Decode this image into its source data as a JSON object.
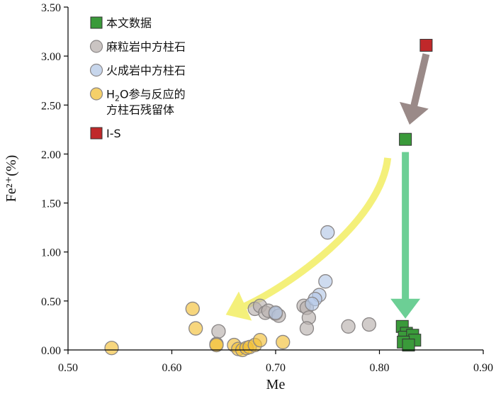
{
  "chart_data": {
    "type": "scatter",
    "xlabel": "Me",
    "ylabel": "Fe²⁺(%)",
    "xlim": [
      0.5,
      0.9
    ],
    "ylim": [
      0.0,
      3.5
    ],
    "x_ticks": [
      "0.50",
      "0.60",
      "0.70",
      "0.80",
      "0.90"
    ],
    "y_ticks": [
      "0.00",
      "0.50",
      "1.00",
      "1.50",
      "2.00",
      "2.50",
      "3.00",
      "3.50"
    ],
    "grid": false,
    "legend_position": "top-left",
    "series": [
      {
        "name": "本文数据",
        "marker": "square",
        "color": "#3a9a3a",
        "points": [
          [
            0.825,
            2.15
          ],
          [
            0.822,
            0.24
          ],
          [
            0.826,
            0.17
          ],
          [
            0.824,
            0.13
          ],
          [
            0.832,
            0.15
          ],
          [
            0.834,
            0.1
          ],
          [
            0.823,
            0.08
          ],
          [
            0.828,
            0.05
          ]
        ]
      },
      {
        "name": "麻粒岩中方柱石",
        "marker": "circle",
        "color": "#b8b0ae",
        "points": [
          [
            0.645,
            0.19
          ],
          [
            0.68,
            0.42
          ],
          [
            0.685,
            0.45
          ],
          [
            0.69,
            0.38
          ],
          [
            0.693,
            0.4
          ],
          [
            0.7,
            0.37
          ],
          [
            0.703,
            0.35
          ],
          [
            0.727,
            0.45
          ],
          [
            0.73,
            0.43
          ],
          [
            0.732,
            0.33
          ],
          [
            0.73,
            0.22
          ],
          [
            0.77,
            0.24
          ],
          [
            0.79,
            0.26
          ]
        ]
      },
      {
        "name": "火成岩中方柱石",
        "marker": "circle",
        "color": "#b4c8e6",
        "points": [
          [
            0.75,
            1.2
          ],
          [
            0.748,
            0.7
          ],
          [
            0.742,
            0.56
          ],
          [
            0.738,
            0.52
          ],
          [
            0.735,
            0.47
          ],
          [
            0.7,
            0.38
          ]
        ]
      },
      {
        "name": "H2O参与反应的方柱石残留体",
        "marker": "circle",
        "color": "#f2c037",
        "points": [
          [
            0.542,
            0.02
          ],
          [
            0.62,
            0.42
          ],
          [
            0.623,
            0.22
          ],
          [
            0.643,
            0.06
          ],
          [
            0.643,
            0.05
          ],
          [
            0.66,
            0.05
          ],
          [
            0.664,
            0.01
          ],
          [
            0.668,
            0.0
          ],
          [
            0.672,
            0.02
          ],
          [
            0.675,
            0.03
          ],
          [
            0.68,
            0.05
          ],
          [
            0.685,
            0.1
          ],
          [
            0.707,
            0.08
          ]
        ]
      },
      {
        "name": "I-S",
        "marker": "square",
        "color": "#c0282a",
        "points": [
          [
            0.845,
            3.11
          ]
        ]
      }
    ],
    "legend": {
      "items": [
        {
          "label": "本文数据",
          "marker": "square",
          "color": "#3a9a3a"
        },
        {
          "label": "麻粒岩中方柱石",
          "marker": "circle",
          "color": "#b8b0ae"
        },
        {
          "label": "火成岩中方柱石",
          "marker": "circle",
          "color": "#b4c8e6"
        },
        {
          "label_main": "H",
          "label_sub": "2",
          "label_rest": "O参与反应的",
          "label_line2": "方柱石残留体",
          "marker": "circle",
          "color": "#f2c037"
        },
        {
          "label": "I-S",
          "marker": "square",
          "color": "#c0282a"
        }
      ]
    },
    "annotations": [
      {
        "type": "arrow",
        "from": [
          0.845,
          3.02
        ],
        "to": [
          0.829,
          2.3
        ],
        "color": "#9a8a88"
      },
      {
        "type": "arrow",
        "from": [
          0.825,
          2.02
        ],
        "to": [
          0.825,
          0.32
        ],
        "color": "#6ccf95"
      },
      {
        "type": "curved-arrow",
        "from": [
          0.808,
          1.96
        ],
        "to": [
          0.652,
          0.36
        ],
        "color": "#f4f07a"
      }
    ]
  }
}
